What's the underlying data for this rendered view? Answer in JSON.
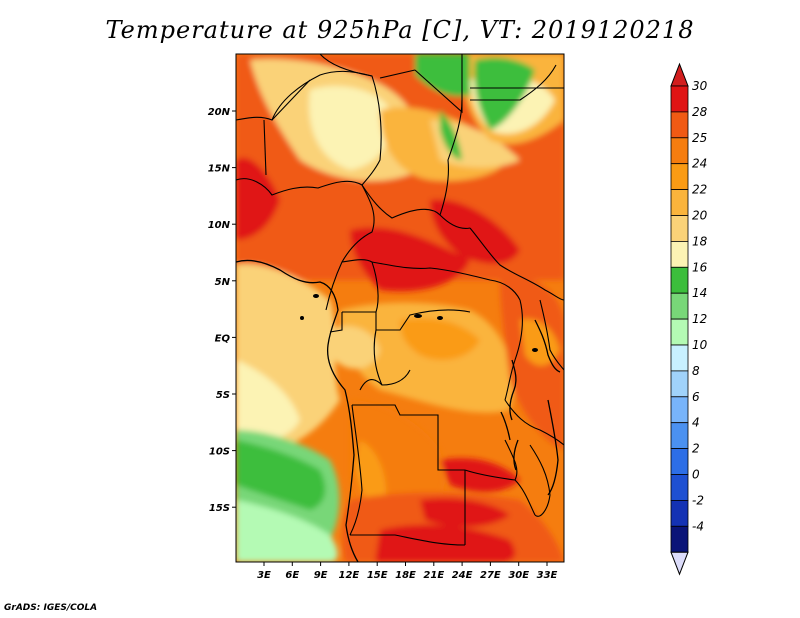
{
  "title": "Temperature at 925hPa [C], VT: 2019120218",
  "credit": "GrADS: IGES/COLA",
  "axes": {
    "lon_labels": [
      "3E",
      "6E",
      "9E",
      "12E",
      "15E",
      "18E",
      "21E",
      "24E",
      "27E",
      "30E",
      "33E"
    ],
    "lat_labels": [
      "20N",
      "15N",
      "10N",
      "5N",
      "EQ",
      "5S",
      "10S",
      "15S"
    ]
  },
  "colorbar": {
    "labels": [
      "30",
      "28",
      "25",
      "24",
      "22",
      "20",
      "18",
      "16",
      "14",
      "12",
      "10",
      "8",
      "6",
      "4",
      "2",
      "0",
      "-2",
      "-4"
    ],
    "colors": [
      "#e01414",
      "#f05a14",
      "#f57d0f",
      "#fa9b14",
      "#fab43c",
      "#fad278",
      "#fcf3b4",
      "#3cbe3c",
      "#78d778",
      "#b4fab4",
      "#c8f0ff",
      "#a0d2fa",
      "#78b4fa",
      "#4b91f0",
      "#2d6ee6",
      "#1e50d2",
      "#1432b4",
      "#0a1478"
    ],
    "top_arrow_color": "#d21e1e",
    "bottom_arrow_color": "#dcdcfa"
  },
  "map": {
    "region": "Central Africa",
    "lon_range": [
      0,
      35
    ],
    "lat_range": [
      -20,
      24.5
    ]
  }
}
